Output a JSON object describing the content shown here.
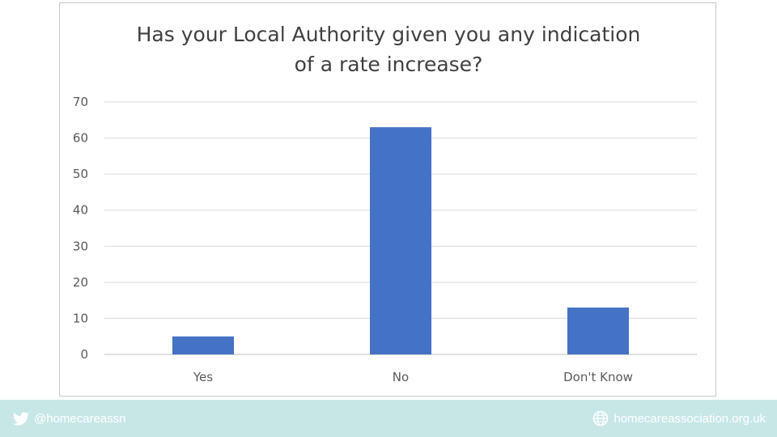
{
  "chart_data": {
    "type": "bar",
    "title": "Has your Local Authority given you any indication of a rate increase?",
    "title_lines": [
      "Has your Local Authority given you any indication",
      "of a rate increase?"
    ],
    "categories": [
      "Yes",
      "No",
      "Don't Know"
    ],
    "values": [
      5,
      63,
      13
    ],
    "ylim": [
      0,
      70
    ],
    "yticks": [
      0,
      10,
      20,
      30,
      40,
      50,
      60,
      70
    ],
    "grid": true,
    "legend": "none",
    "bar_color": "#4472c4"
  },
  "footer": {
    "twitter_handle": "@homecareassn",
    "website": "homecareassociation.org.uk",
    "twitter_icon": "twitter-icon",
    "globe_icon": "globe-icon",
    "background_color": "#c7e7e6"
  }
}
